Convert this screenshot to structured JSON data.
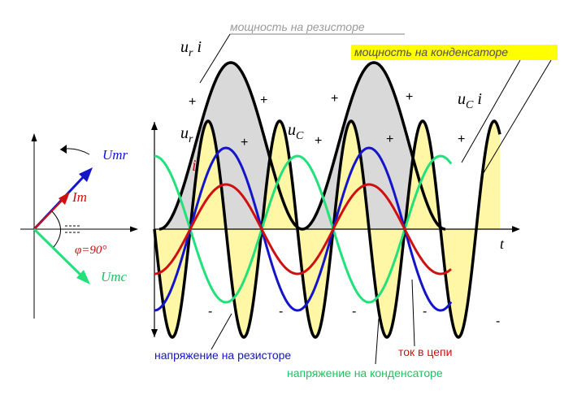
{
  "labels": {
    "resistor_power": "мощность на резисторе",
    "capacitor_power": "мощность на конденсаторе",
    "resistor_voltage": "напряжение на резисторе",
    "capacitor_voltage": "напряжение на конденсаторе",
    "circuit_current": "ток в цепи",
    "time_axis": "t",
    "ur_i": "u",
    "ur_i_sub": "r",
    "ur_i_tail": " i",
    "uc_i": "u",
    "uc_i_sub": "C",
    "uc_i_tail": " i",
    "ur": "u",
    "ur_sub": "r",
    "uc": "u",
    "uc_sub": "C",
    "i": "i",
    "plus": "+",
    "minus": "-"
  },
  "phasor": {
    "umr": "Umr",
    "im": "Im",
    "umc": "Umc",
    "phi": "φ=90°"
  },
  "colors": {
    "resistor_voltage": "#1414c8",
    "capacitor_voltage": "#22e07a",
    "current": "#d01010",
    "resistor_power_fill": "#d9d9d9",
    "capacitor_power_fill": "#fff7a6",
    "power_curve": "#000000",
    "highlight": "#ffff00"
  }
}
